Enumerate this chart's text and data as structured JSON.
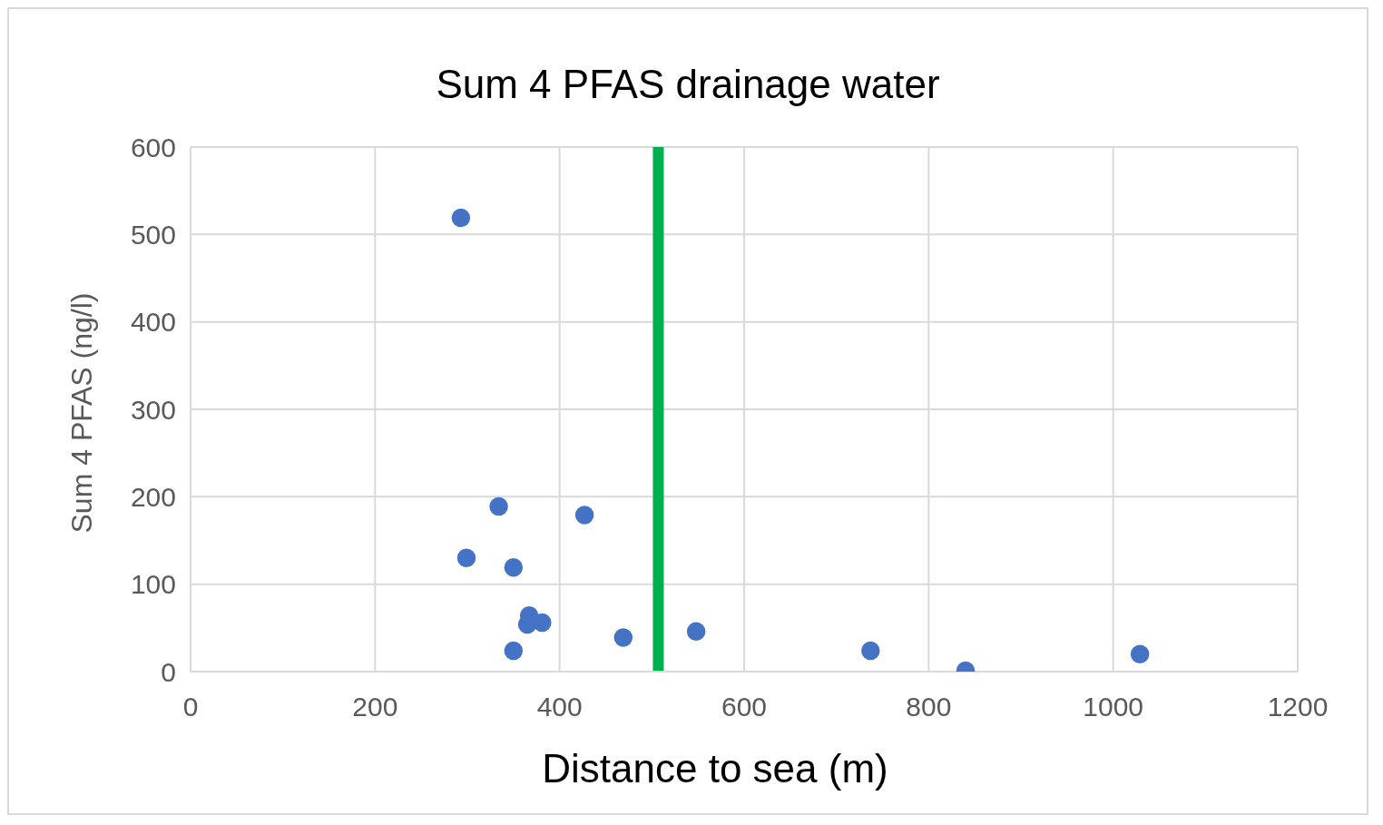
{
  "chart_data": {
    "type": "scatter",
    "title": "Sum 4 PFAS drainage water",
    "xlabel": "Distance to sea (m)",
    "ylabel": "Sum 4 PFAS (ng/l)",
    "x": [
      293,
      334,
      427,
      299,
      350,
      365,
      381,
      367,
      350,
      469,
      548,
      737,
      840,
      1029
    ],
    "values": [
      519,
      189,
      179,
      130,
      119,
      54,
      56,
      64,
      24,
      39,
      46,
      24,
      1,
      20
    ],
    "color": "#4472c4",
    "marker": "circle",
    "xlim": [
      0,
      1200
    ],
    "xticks": [
      0,
      200,
      400,
      600,
      800,
      1000,
      1200
    ],
    "ylim": [
      0,
      600
    ],
    "yticks": [
      0,
      100,
      200,
      300,
      400,
      500,
      600
    ],
    "grid": true,
    "ref_lines": [
      {
        "axis": "x",
        "value": 507,
        "color": "#00b050"
      }
    ]
  }
}
